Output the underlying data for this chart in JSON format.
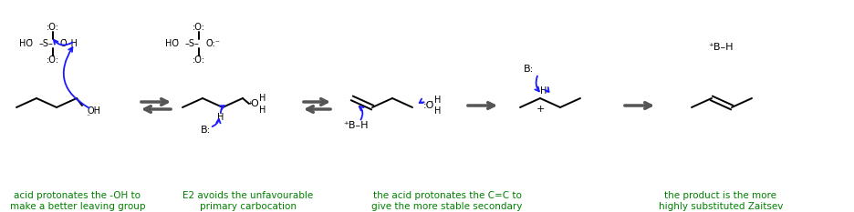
{
  "bg_color": "#ffffff",
  "green": "#008000",
  "black": "#000000",
  "blue": "#1a1aff",
  "gray": "#808080",
  "label1": "acid protonates the -OH to\nmake a better leaving group",
  "label2": "E2 avoids the unfavourable\nprimary carbocation",
  "label3": "the acid protonates the C=C to\ngive the more stable secondary\ncarbocation",
  "label4": "the product is the more\nhighly substituted Zaitsev\nalkene",
  "figw": 9.37,
  "figh": 2.33,
  "dpi": 100
}
